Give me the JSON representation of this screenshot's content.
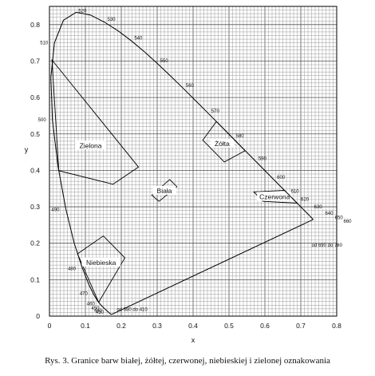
{
  "caption": "Rys. 3. Granice barw białej, żółtej, czerwonej, niebieskiej i zielonej oznakowania",
  "chart_data": {
    "type": "line",
    "title": "",
    "xlabel": "x",
    "ylabel": "y",
    "xlim": [
      0,
      0.8
    ],
    "ylim": [
      0,
      0.85
    ],
    "grid": true,
    "x_ticks": [
      "0",
      "0.1",
      "0.2",
      "0.3",
      "0.4",
      "0.5",
      "0.6",
      "0.7",
      "0.8"
    ],
    "y_ticks": [
      "0",
      "0.1",
      "0.2",
      "0.3",
      "0.4",
      "0.5",
      "0.6",
      "0.7",
      "0.8"
    ],
    "spectrum_locus": {
      "points": [
        [
          0.1741,
          0.005
        ],
        [
          0.1738,
          0.0049
        ],
        [
          0.1736,
          0.0049
        ],
        [
          0.1733,
          0.0048
        ],
        [
          0.173,
          0.0048
        ],
        [
          0.1726,
          0.0048
        ],
        [
          0.1721,
          0.0048
        ],
        [
          0.1714,
          0.0051
        ],
        [
          0.1703,
          0.0058
        ],
        [
          0.1689,
          0.0069
        ],
        [
          0.1669,
          0.0086
        ],
        [
          0.1644,
          0.0109
        ],
        [
          0.1611,
          0.0138
        ],
        [
          0.1566,
          0.0177
        ],
        [
          0.151,
          0.0227
        ],
        [
          0.144,
          0.0297
        ],
        [
          0.1355,
          0.0399
        ],
        [
          0.1241,
          0.0578
        ],
        [
          0.1096,
          0.0868
        ],
        [
          0.0913,
          0.1327
        ],
        [
          0.0687,
          0.2007
        ],
        [
          0.0454,
          0.295
        ],
        [
          0.0235,
          0.4127
        ],
        [
          0.0082,
          0.5384
        ],
        [
          0.0039,
          0.6548
        ],
        [
          0.0139,
          0.7502
        ],
        [
          0.0389,
          0.812
        ],
        [
          0.0743,
          0.8338
        ],
        [
          0.1142,
          0.8262
        ],
        [
          0.1547,
          0.8059
        ],
        [
          0.1929,
          0.7816
        ],
        [
          0.2296,
          0.7543
        ],
        [
          0.2658,
          0.7243
        ],
        [
          0.3016,
          0.6923
        ],
        [
          0.3373,
          0.6589
        ],
        [
          0.3731,
          0.6245
        ],
        [
          0.4087,
          0.5896
        ],
        [
          0.4441,
          0.5547
        ],
        [
          0.4788,
          0.5202
        ],
        [
          0.5125,
          0.4866
        ],
        [
          0.5448,
          0.4544
        ],
        [
          0.5752,
          0.4242
        ],
        [
          0.6029,
          0.3965
        ],
        [
          0.627,
          0.3725
        ],
        [
          0.6482,
          0.3514
        ],
        [
          0.6658,
          0.334
        ],
        [
          0.6801,
          0.3197
        ],
        [
          0.6915,
          0.3083
        ],
        [
          0.7006,
          0.2993
        ],
        [
          0.7079,
          0.292
        ],
        [
          0.714,
          0.2859
        ],
        [
          0.719,
          0.2809
        ],
        [
          0.723,
          0.277
        ],
        [
          0.726,
          0.274
        ],
        [
          0.7283,
          0.2717
        ],
        [
          0.73,
          0.27
        ],
        [
          0.7311,
          0.2689
        ],
        [
          0.732,
          0.268
        ],
        [
          0.7327,
          0.2673
        ],
        [
          0.7334,
          0.2666
        ],
        [
          0.734,
          0.266
        ],
        [
          0.7344,
          0.2656
        ],
        [
          0.7346,
          0.2654
        ],
        [
          0.7347,
          0.2653
        ]
      ],
      "wavelength_labels": [
        {
          "text": "520",
          "x": 0.0743,
          "y": 0.8338
        },
        {
          "text": "530",
          "x": 0.1547,
          "y": 0.8059
        },
        {
          "text": "540",
          "x": 0.2296,
          "y": 0.7543
        },
        {
          "text": "550",
          "x": 0.3016,
          "y": 0.6923
        },
        {
          "text": "560",
          "x": 0.3731,
          "y": 0.6245
        },
        {
          "text": "570",
          "x": 0.4441,
          "y": 0.5547
        },
        {
          "text": "580",
          "x": 0.5125,
          "y": 0.4866
        },
        {
          "text": "590",
          "x": 0.5752,
          "y": 0.4242
        },
        {
          "text": "600",
          "x": 0.627,
          "y": 0.3725
        },
        {
          "text": "610",
          "x": 0.6658,
          "y": 0.334
        },
        {
          "text": "620",
          "x": 0.6915,
          "y": 0.3083
        },
        {
          "text": "630",
          "x": 0.7079,
          "y": 0.292
        },
        {
          "text": "640",
          "x": 0.719,
          "y": 0.2809
        },
        {
          "text": "650",
          "x": 0.726,
          "y": 0.274
        },
        {
          "text": "660",
          "x": 0.73,
          "y": 0.27
        },
        {
          "text": "510",
          "x": 0.0139,
          "y": 0.7502
        },
        {
          "text": "500",
          "x": 0.0082,
          "y": 0.5384
        },
        {
          "text": "490",
          "x": 0.0454,
          "y": 0.295
        },
        {
          "text": "480",
          "x": 0.0913,
          "y": 0.1327
        },
        {
          "text": "470",
          "x": 0.1241,
          "y": 0.0578
        },
        {
          "text": "460",
          "x": 0.144,
          "y": 0.0297
        },
        {
          "text": "450",
          "x": 0.1566,
          "y": 0.0177
        },
        {
          "text": "440",
          "x": 0.1644,
          "y": 0.0109
        },
        {
          "text": "430",
          "x": 0.1689,
          "y": 0.0069
        }
      ]
    },
    "endpoint_labels": [
      {
        "text": "od 690 do 780",
        "x": 0.7347,
        "y": 0.2653
      },
      {
        "text": "od 380 do 410",
        "x": 0.1741,
        "y": 0.005
      }
    ],
    "regions": [
      {
        "name": "Zielona",
        "points": [
          [
            0.007,
            0.703
          ],
          [
            0.248,
            0.409
          ],
          [
            0.177,
            0.362
          ],
          [
            0.026,
            0.399
          ]
        ]
      },
      {
        "name": "Żółta",
        "points": [
          [
            0.545,
            0.454
          ],
          [
            0.487,
            0.423
          ],
          [
            0.427,
            0.483
          ],
          [
            0.465,
            0.534
          ]
        ]
      },
      {
        "name": "Biała",
        "points": [
          [
            0.355,
            0.355
          ],
          [
            0.305,
            0.315
          ],
          [
            0.285,
            0.332
          ],
          [
            0.335,
            0.375
          ]
        ]
      },
      {
        "name": "Czerwona",
        "points": [
          [
            0.69,
            0.31
          ],
          [
            0.595,
            0.315
          ],
          [
            0.569,
            0.341
          ],
          [
            0.655,
            0.345
          ]
        ]
      },
      {
        "name": "Niebieska",
        "points": [
          [
            0.078,
            0.171
          ],
          [
            0.15,
            0.22
          ],
          [
            0.21,
            0.16
          ],
          [
            0.137,
            0.038
          ]
        ]
      }
    ]
  }
}
